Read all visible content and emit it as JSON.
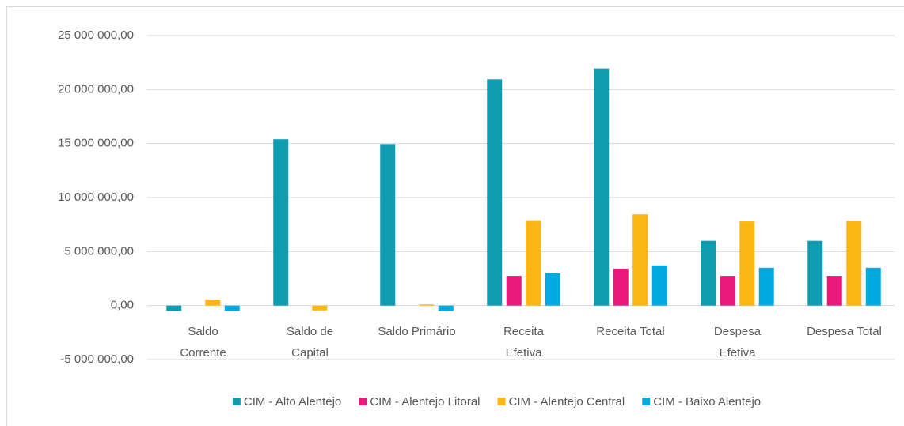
{
  "chart_data": {
    "type": "bar",
    "categories": [
      "Saldo Corrente",
      "Saldo de Capital",
      "Saldo Primário",
      "Receita Efetiva",
      "Receita Total",
      "Despesa Efetiva",
      "Despesa Total"
    ],
    "series": [
      {
        "name": "CIM - Alto Alentejo",
        "color": "#0f9bb0",
        "values": [
          -500000,
          15400000,
          14950000,
          20950000,
          21950000,
          6000000,
          6000000
        ]
      },
      {
        "name": "CIM - Alentejo Litoral",
        "color": "#e8197a",
        "values": [
          0,
          0,
          0,
          2750000,
          3420000,
          2750000,
          2750000
        ]
      },
      {
        "name": "CIM - Alentejo Central",
        "color": "#fdb714",
        "values": [
          550000,
          -450000,
          100000,
          7900000,
          8450000,
          7800000,
          7850000
        ]
      },
      {
        "name": "CIM - Baixo Alentejo",
        "color": "#00a9df",
        "values": [
          -500000,
          0,
          -500000,
          2980000,
          3720000,
          3500000,
          3500000
        ]
      }
    ],
    "ylim": [
      -5000000,
      25000000
    ],
    "yticks": [
      {
        "value": -5000000,
        "label": "-5 000 000,00"
      },
      {
        "value": 0,
        "label": "0,00"
      },
      {
        "value": 5000000,
        "label": "5 000 000,00"
      },
      {
        "value": 10000000,
        "label": "10 000 000,00"
      },
      {
        "value": 15000000,
        "label": "15 000 000,00"
      },
      {
        "value": 20000000,
        "label": "20 000 000,00"
      },
      {
        "value": 25000000,
        "label": "25 000 000,00"
      }
    ],
    "grid": true,
    "legend": "bottom"
  }
}
